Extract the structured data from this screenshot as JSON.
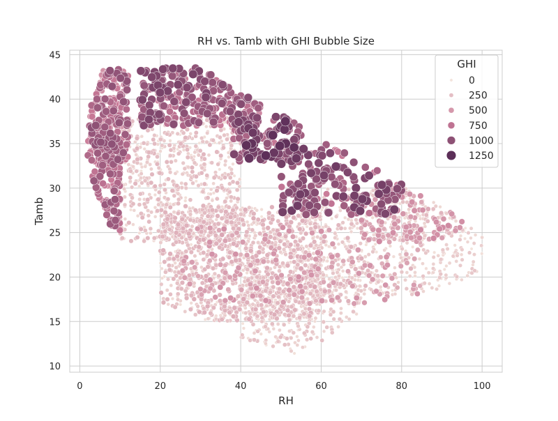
{
  "chart_data": {
    "type": "scatter",
    "title": "RH vs. Tamb with GHI Bubble Size",
    "xlabel": "RH",
    "ylabel": "Tamb",
    "xlim": [
      -2.5,
      105
    ],
    "ylim": [
      9.3,
      45.5
    ],
    "xticks": [
      0,
      20,
      40,
      60,
      80,
      100
    ],
    "yticks": [
      10,
      15,
      20,
      25,
      30,
      35,
      40,
      45
    ],
    "grid": true,
    "legend_position": "top-right",
    "legend": {
      "title": "GHI",
      "entries": [
        {
          "label": "0",
          "ghi": 0
        },
        {
          "label": "250",
          "ghi": 250
        },
        {
          "label": "500",
          "ghi": 500
        },
        {
          "label": "750",
          "ghi": 750
        },
        {
          "label": "1000",
          "ghi": 1000
        },
        {
          "label": "1250",
          "ghi": 1250
        }
      ]
    },
    "hue_range": [
      0,
      1400
    ],
    "colors": {
      "low": "#f3e4dc",
      "mid": "#c97a98",
      "high": "#3e1a47",
      "background": "#ffffff",
      "grid": "#cccccc",
      "spine": "#cccccc"
    },
    "series": [
      {
        "name": "GHI",
        "clusters": [
          {
            "rh": [
              2,
              12
            ],
            "tamb": [
              33,
              43.5
            ],
            "ghi": [
              400,
              1000
            ],
            "n": 260
          },
          {
            "rh": [
              3,
              10
            ],
            "tamb": [
              25,
              36
            ],
            "ghi": [
              500,
              950
            ],
            "n": 160
          },
          {
            "rh": [
              15,
              45
            ],
            "tamb": [
              37,
              43.5
            ],
            "ghi": [
              600,
              1100
            ],
            "n": 320
          },
          {
            "rh": [
              38,
              55
            ],
            "tamb": [
              33,
              38
            ],
            "ghi": [
              700,
              1250
            ],
            "n": 120
          },
          {
            "rh": [
              50,
              80
            ],
            "tamb": [
              27,
              35
            ],
            "ghi": [
              650,
              1150
            ],
            "n": 220
          },
          {
            "rh": [
              70,
              95
            ],
            "tamb": [
              24,
              30
            ],
            "ghi": [
              200,
              600
            ],
            "n": 160
          },
          {
            "rh": [
              10,
              40
            ],
            "tamb": [
              24,
              38
            ],
            "ghi": [
              0,
              300
            ],
            "n": 700
          },
          {
            "rh": [
              20,
              60
            ],
            "tamb": [
              15,
              28
            ],
            "ghi": [
              0,
              350
            ],
            "n": 1200
          },
          {
            "rh": [
              40,
              70
            ],
            "tamb": [
              11,
              22
            ],
            "ghi": [
              0,
              250
            ],
            "n": 500
          },
          {
            "rh": [
              55,
              100
            ],
            "tamb": [
              18,
              30
            ],
            "ghi": [
              0,
              200
            ],
            "n": 650
          },
          {
            "rh": [
              25,
              85
            ],
            "tamb": [
              17,
              26
            ],
            "ghi": [
              250,
              550
            ],
            "n": 260
          }
        ]
      }
    ]
  }
}
